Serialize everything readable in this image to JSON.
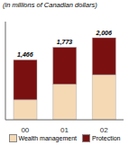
{
  "chart_data": {
    "type": "bar",
    "title": "(in millions of Canadian dollars)",
    "categories": [
      "00",
      "01",
      "02"
    ],
    "series": [
      {
        "name": "Wealth management",
        "color": "#F5D9B5",
        "values": [
          490,
          870,
          1100
        ]
      },
      {
        "name": "Protection",
        "color": "#7B1010",
        "values": [
          976,
          903,
          906
        ]
      }
    ],
    "stacked": true,
    "ylim": [
      0,
      2400
    ],
    "totals": [
      1466,
      1773,
      2006
    ],
    "total_labels": [
      "1,466",
      "1,773",
      "2,006"
    ],
    "tick_labels": "x",
    "grid": false,
    "legend": "bottom"
  }
}
